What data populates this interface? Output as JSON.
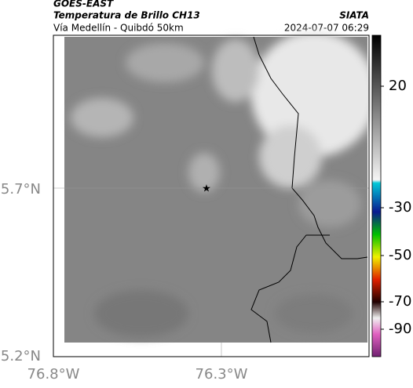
{
  "header": {
    "source": "GOES-EAST",
    "title": "Temperatura de Brillo CH13",
    "subtitle": "Vía Medellín - Quibdó 50km",
    "org": "SIATA",
    "datetime": "2024-07-07 06:29"
  },
  "map": {
    "lat_labels": [
      "5.7°N",
      "5.2°N"
    ],
    "lon_labels": [
      "76.8°W",
      "76.3°W"
    ]
  },
  "colorbar": {
    "ticks": [
      20,
      -30,
      -50,
      -70,
      -90
    ]
  }
}
